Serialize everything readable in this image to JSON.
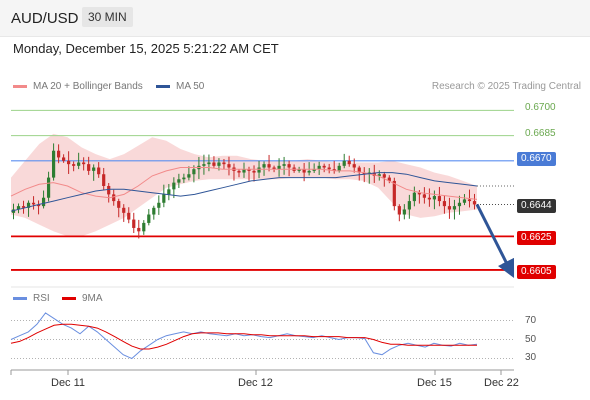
{
  "header": {
    "symbol": "AUD/USD",
    "timeframe": "30 MIN"
  },
  "datetime": "Monday, December 15, 2025 5:21:22 AM CET",
  "legend_main": [
    {
      "label": "MA 20 + Bollinger Bands",
      "color": "#f28a8a"
    },
    {
      "label": "MA 50",
      "color": "#2f5597"
    }
  ],
  "credit": "Research © 2025 Trading Central",
  "legend_rsi": [
    {
      "label": "RSI",
      "color": "#6a8fe0"
    },
    {
      "label": "9MA",
      "color": "#e00000"
    }
  ],
  "colors": {
    "up": "#2e7d32",
    "down": "#c62828",
    "ma50": "#2f5597",
    "bb": "#f7c9c9"
  },
  "chart_data": {
    "type": "candlestick",
    "symbol": "AUD/USD",
    "interval": "30 MIN",
    "ylim": [
      0.6599,
      0.6708
    ],
    "x_ticks": [
      "Dec 11",
      "Dec 12",
      "Dec 15",
      "Dec 22"
    ],
    "levels": [
      {
        "value": "0.6700",
        "kind": "resistance-2"
      },
      {
        "value": "0.6685",
        "kind": "resistance-1"
      },
      {
        "value": "0.6670",
        "kind": "pivot"
      },
      {
        "value": "0.6644",
        "kind": "last-price"
      },
      {
        "value": "0.6625",
        "kind": "support-1"
      },
      {
        "value": "0.6605",
        "kind": "support-2"
      }
    ],
    "close_path": [
      0.6641,
      0.6643,
      0.6642,
      0.6645,
      0.6644,
      0.6643,
      0.6648,
      0.666,
      0.6676,
      0.6672,
      0.667,
      0.6668,
      0.6667,
      0.6669,
      0.6668,
      0.6664,
      0.6666,
      0.6662,
      0.6655,
      0.665,
      0.6646,
      0.6642,
      0.6639,
      0.6635,
      0.663,
      0.6628,
      0.6633,
      0.6638,
      0.6642,
      0.6645,
      0.665,
      0.6653,
      0.6657,
      0.6659,
      0.666,
      0.6662,
      0.6665,
      0.6667,
      0.6668,
      0.6669,
      0.6667,
      0.6669,
      0.6668,
      0.6666,
      0.6664,
      0.6663,
      0.6665,
      0.6664,
      0.6663,
      0.6666,
      0.6668,
      0.6666,
      0.6665,
      0.6667,
      0.6668,
      0.6666,
      0.6664,
      0.6665,
      0.6663,
      0.6664,
      0.6665,
      0.6667,
      0.6666,
      0.6665,
      0.6664,
      0.6667,
      0.667,
      0.6668,
      0.6666,
      0.6663,
      0.6662,
      0.6663,
      0.6661,
      0.6662,
      0.666,
      0.6658,
      0.6643,
      0.6638,
      0.6641,
      0.6646,
      0.6651,
      0.665,
      0.6648,
      0.6647,
      0.6649,
      0.6646,
      0.6643,
      0.6641,
      0.6643,
      0.6645,
      0.6647,
      0.6646,
      0.6644
    ],
    "ma50_path": [
      0.664,
      0.6642,
      0.6644,
      0.6646,
      0.6648,
      0.665,
      0.6652,
      0.6653,
      0.6653,
      0.6652,
      0.6651,
      0.665,
      0.6649,
      0.665,
      0.6652,
      0.6654,
      0.6656,
      0.6658,
      0.6659,
      0.666,
      0.666,
      0.666,
      0.666,
      0.666,
      0.6661,
      0.6662,
      0.6663,
      0.6663,
      0.6662,
      0.666,
      0.6658,
      0.6657,
      0.6656,
      0.6655
    ],
    "bb_upper": [
      0.666,
      0.667,
      0.668,
      0.6686,
      0.6684,
      0.6678,
      0.6674,
      0.6671,
      0.6674,
      0.6679,
      0.6684,
      0.6682,
      0.6677,
      0.6674,
      0.6672,
      0.6673,
      0.6673,
      0.6671,
      0.667,
      0.667,
      0.667,
      0.6671,
      0.667,
      0.6669,
      0.6669,
      0.6669,
      0.6669,
      0.667,
      0.6668,
      0.6666,
      0.6663,
      0.6661,
      0.6658,
      0.6655
    ],
    "bb_lower": [
      0.6638,
      0.6636,
      0.6632,
      0.6628,
      0.6625,
      0.6625,
      0.6628,
      0.6632,
      0.6636,
      0.6642,
      0.6648,
      0.6654,
      0.6656,
      0.6658,
      0.6659,
      0.6659,
      0.6659,
      0.6659,
      0.6659,
      0.6659,
      0.666,
      0.666,
      0.666,
      0.6659,
      0.6659,
      0.6658,
      0.6654,
      0.6645,
      0.6638,
      0.6636,
      0.6637,
      0.6639,
      0.664,
      0.6641
    ],
    "ma20_path": [
      0.6649,
      0.6653,
      0.6656,
      0.6657,
      0.6655,
      0.6651,
      0.6649,
      0.6648,
      0.665,
      0.6655,
      0.6661,
      0.6664,
      0.6666,
      0.6666,
      0.6666,
      0.6665,
      0.6665,
      0.6665,
      0.6665,
      0.6665,
      0.6665,
      0.6665,
      0.6665,
      0.6664,
      0.6664,
      0.6663,
      0.6661,
      0.6657,
      0.6653,
      0.6651,
      0.665,
      0.6649,
      0.6648,
      0.6647
    ],
    "forecast": {
      "from": 0.6644,
      "to": 0.6605
    },
    "rsi": {
      "ylim": [
        20,
        80
      ],
      "ticks": [
        "70",
        "50",
        "30"
      ],
      "rsi_path": [
        50,
        54,
        58,
        66,
        78,
        72,
        66,
        62,
        56,
        64,
        58,
        50,
        42,
        34,
        30,
        38,
        44,
        50,
        54,
        56,
        58,
        56,
        58,
        56,
        55,
        54,
        56,
        54,
        55,
        53,
        52,
        54,
        56,
        54,
        53,
        52,
        54,
        52,
        50,
        52,
        52,
        51,
        36,
        34,
        40,
        44,
        46,
        44,
        42,
        46,
        44,
        43,
        46,
        44,
        45
      ],
      "ma9_path": [
        46,
        48,
        52,
        57,
        61,
        65,
        66,
        66,
        65,
        64,
        62,
        58,
        53,
        48,
        43,
        40,
        40,
        42,
        45,
        49,
        53,
        56,
        57,
        57,
        57,
        56,
        56,
        56,
        55,
        55,
        54,
        54,
        54,
        54,
        54,
        53,
        53,
        53,
        53,
        52,
        52,
        52,
        50,
        47,
        45,
        45,
        44,
        44,
        44,
        44,
        44,
        44,
        44,
        44,
        44
      ]
    }
  }
}
